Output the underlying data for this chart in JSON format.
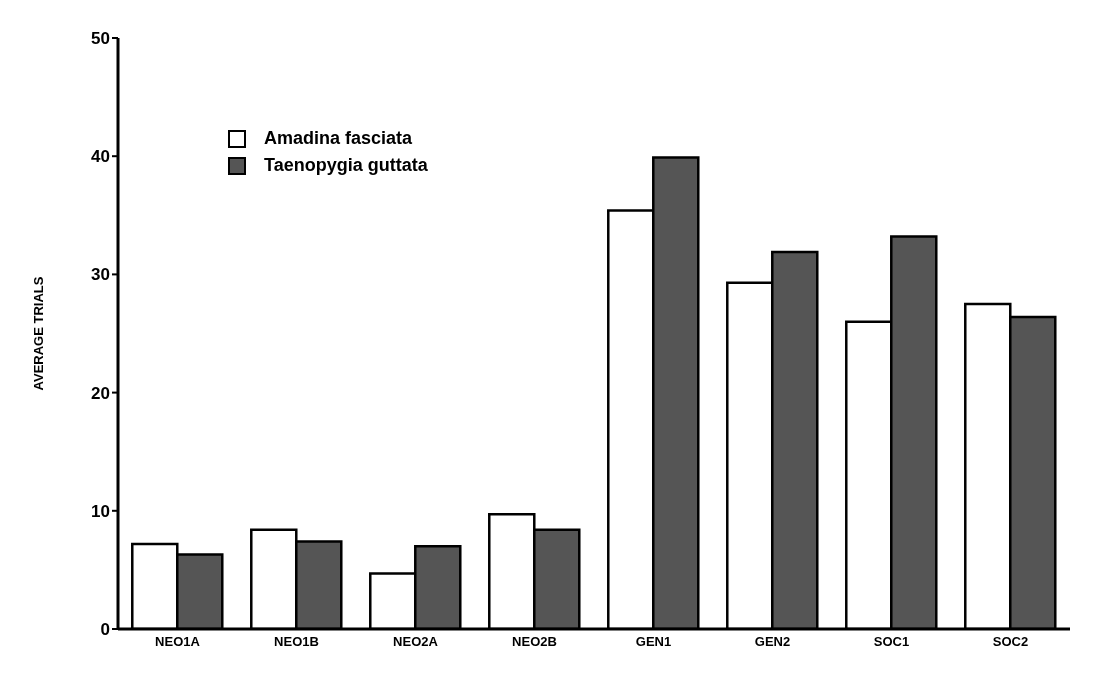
{
  "chart_data": {
    "type": "bar",
    "ylabel": "AVERAGE TRIALS",
    "categories": [
      "NEO1A",
      "NEO1B",
      "NEO2A",
      "NEO2B",
      "GEN1",
      "GEN2",
      "SOC1",
      "SOC2"
    ],
    "series": [
      {
        "name": "Amadina fasciata",
        "color": "#ffffff",
        "values": [
          7.2,
          8.4,
          4.7,
          9.7,
          35.4,
          29.3,
          26.0,
          27.5
        ]
      },
      {
        "name": "Taenopygia guttata",
        "color": "#555555",
        "values": [
          6.3,
          7.4,
          7.0,
          8.4,
          39.9,
          31.9,
          33.2,
          26.4
        ]
      }
    ],
    "ylim": [
      0,
      50
    ],
    "yticks": [
      0,
      10,
      20,
      30,
      40,
      50
    ],
    "legend": "top left"
  }
}
